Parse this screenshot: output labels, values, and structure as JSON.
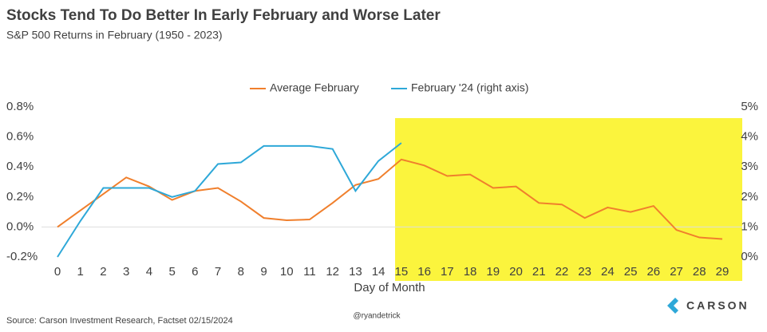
{
  "chart_data": {
    "type": "line",
    "title": "Stocks Tend To Do Better In Early February and Worse Later",
    "subtitle": "S&P 500 Returns in February (1950 - 2023)",
    "x_label": "Day of Month",
    "x": [
      0,
      1,
      2,
      3,
      4,
      5,
      6,
      7,
      8,
      9,
      10,
      11,
      12,
      13,
      14,
      15,
      16,
      17,
      18,
      19,
      20,
      21,
      22,
      23,
      24,
      25,
      26,
      27,
      28,
      29
    ],
    "xlim": [
      0,
      29
    ],
    "series": [
      {
        "name": "Average February",
        "color": "#f07f2c",
        "axis": "y",
        "values": [
          0.0,
          0.11,
          0.22,
          0.33,
          0.27,
          0.18,
          0.24,
          0.26,
          0.17,
          0.06,
          0.045,
          0.05,
          0.16,
          0.28,
          0.32,
          0.45,
          0.41,
          0.34,
          0.35,
          0.26,
          0.27,
          0.16,
          0.15,
          0.06,
          0.13,
          0.1,
          0.14,
          -0.02,
          -0.07,
          -0.08
        ]
      },
      {
        "name": "February '24 (right axis)",
        "color": "#2ea8d8",
        "axis": "y2",
        "values": [
          0.0,
          1.2,
          2.3,
          2.3,
          2.3,
          2.0,
          2.2,
          3.1,
          3.15,
          3.7,
          3.7,
          3.7,
          3.6,
          2.2,
          3.2,
          3.8,
          null,
          null,
          null,
          null,
          null,
          null,
          null,
          null,
          null,
          null,
          null,
          null,
          null,
          null
        ]
      }
    ],
    "ylim": [
      -0.2,
      0.8
    ],
    "yticks": [
      {
        "value": -0.2,
        "label": "-0.2%"
      },
      {
        "value": 0.0,
        "label": "0.0%"
      },
      {
        "value": 0.2,
        "label": "0.2%"
      },
      {
        "value": 0.4,
        "label": "0.4%"
      },
      {
        "value": 0.6,
        "label": "0.6%"
      },
      {
        "value": 0.8,
        "label": "0.8%"
      }
    ],
    "y2lim": [
      0,
      5
    ],
    "y2ticks": [
      {
        "value": 0,
        "label": "0%"
      },
      {
        "value": 1,
        "label": "1%"
      },
      {
        "value": 2,
        "label": "2%"
      },
      {
        "value": 3,
        "label": "3%"
      },
      {
        "value": 4,
        "label": "4%"
      },
      {
        "value": 5,
        "label": "5%"
      }
    ],
    "zero_line": true,
    "source": "Source: Carson Investment Research, Factset 02/15/2024",
    "handle": "@ryandetrick",
    "logo": "CARSON"
  }
}
